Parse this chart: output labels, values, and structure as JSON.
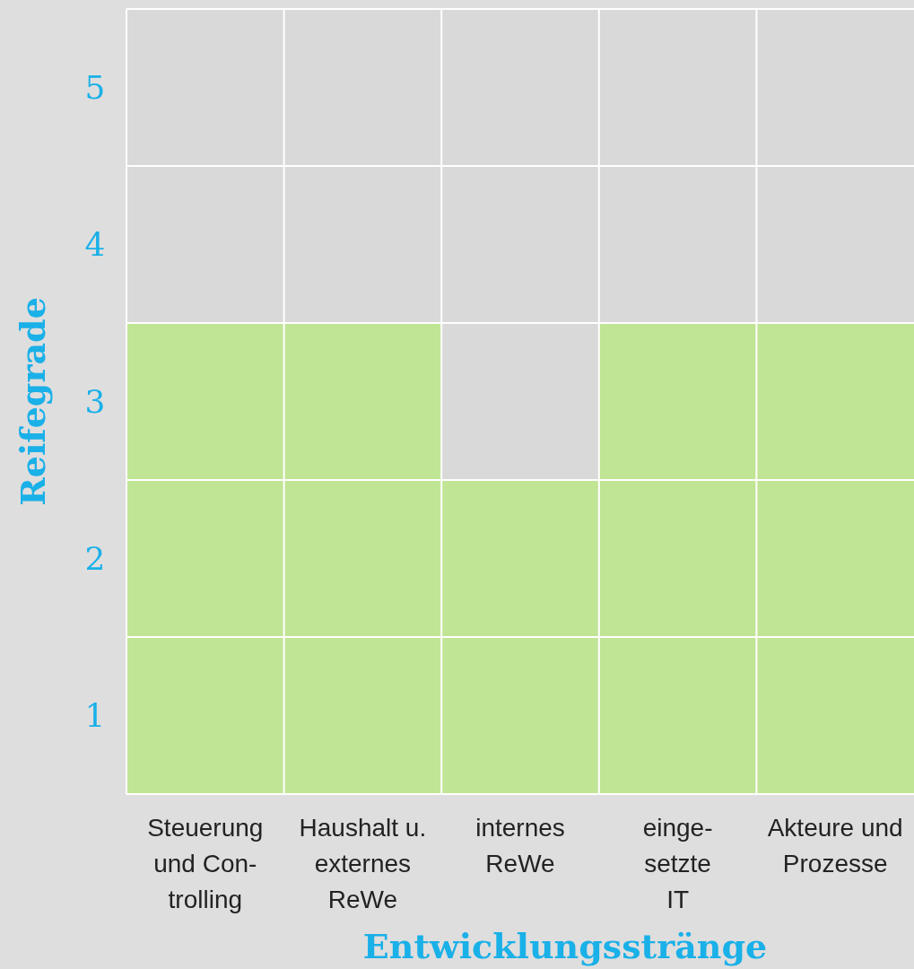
{
  "chart_data": {
    "type": "bar",
    "xlabel": "Entwicklungsstränge",
    "ylabel": "Reifegrade",
    "categories": [
      "Steuerung\nund Con-\ntrolling",
      "Haushalt u.\nexternes\nReWe",
      "internes\nReWe",
      "einge-\nsetzte\nIT",
      "Akteure und\nProzesse"
    ],
    "values": [
      3,
      3,
      2,
      3,
      3
    ],
    "color": "#c0e595",
    "ylim": [
      0,
      5
    ],
    "yticks": [
      {
        "value": 0,
        "label": null
      },
      {
        "value": 0.5,
        "label": "1"
      },
      {
        "value": 1,
        "label": null
      },
      {
        "value": 1.5,
        "label": "2"
      },
      {
        "value": 2,
        "label": null
      },
      {
        "value": 2.5,
        "label": "3"
      },
      {
        "value": 3,
        "label": null
      },
      {
        "value": 3.5,
        "label": "4"
      },
      {
        "value": 4,
        "label": null
      },
      {
        "value": 4.5,
        "label": "5"
      },
      {
        "value": 5,
        "label": null
      }
    ],
    "grid": true
  }
}
